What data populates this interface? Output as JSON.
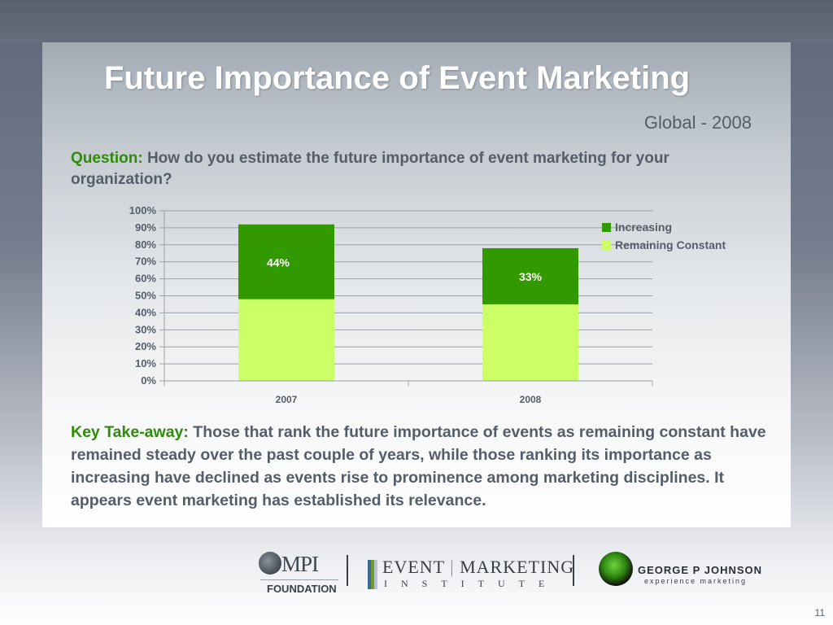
{
  "slide": {
    "title": "Future Importance of Event Marketing",
    "subtitle": "Global - 2008",
    "question_lead": "Question:",
    "question_text": " How do you estimate the future importance of event marketing for your organization?",
    "takeaway_lead": "Key Take-away:",
    "takeaway_text": " Those that rank the future importance of events as remaining constant have remained steady over the past couple of years, while those ranking its importance as increasing have declined as events rise to prominence among marketing disciplines. It appears event marketing has established its relevance.",
    "page_number": "11"
  },
  "logos": {
    "mpi_mark": "MPI",
    "mpi_foundation": "FOUNDATION",
    "emi_word1": "EVENT",
    "emi_word2": "MARKETING",
    "emi_institute": "INSTITUTE",
    "gpj_name": "GEORGE P JOHNSON",
    "gpj_tagline": "experience marketing"
  },
  "chart_data": {
    "type": "bar",
    "stacked": true,
    "categories": [
      "2007",
      "2008"
    ],
    "series": [
      {
        "name": "Remaining Constant",
        "values": [
          48,
          45
        ],
        "color": "#ccff66",
        "label": [
          "",
          ""
        ]
      },
      {
        "name": "Increasing",
        "values": [
          44,
          33
        ],
        "color": "#339900",
        "label": [
          "44%",
          "33%"
        ]
      }
    ],
    "legend_order": [
      "Increasing",
      "Remaining Constant"
    ],
    "ylim": [
      0,
      100
    ],
    "yticks": [
      "0%",
      "10%",
      "20%",
      "30%",
      "40%",
      "50%",
      "60%",
      "70%",
      "80%",
      "90%",
      "100%"
    ],
    "grid": true,
    "legend_position": "top-right"
  }
}
